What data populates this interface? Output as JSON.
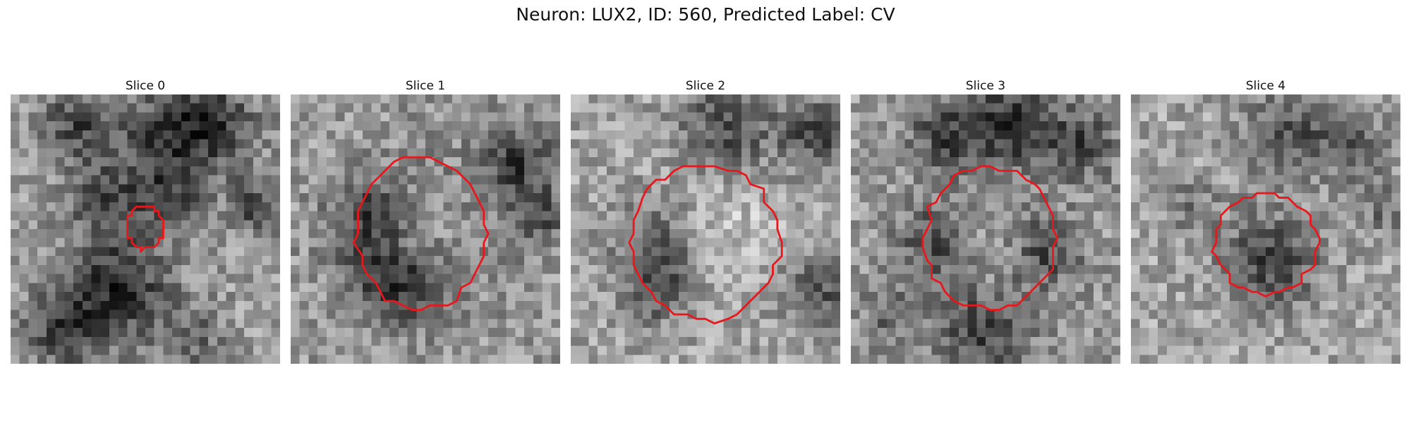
{
  "figure": {
    "title": "Neuron: LUX2, ID: 560, Predicted Label: CV",
    "contour_color": "#e8171b",
    "grid_size": 30,
    "panels": [
      {
        "title": "Slice 0"
      },
      {
        "title": "Slice 1"
      },
      {
        "title": "Slice 2"
      },
      {
        "title": "Slice 3"
      },
      {
        "title": "Slice 4"
      }
    ]
  }
}
